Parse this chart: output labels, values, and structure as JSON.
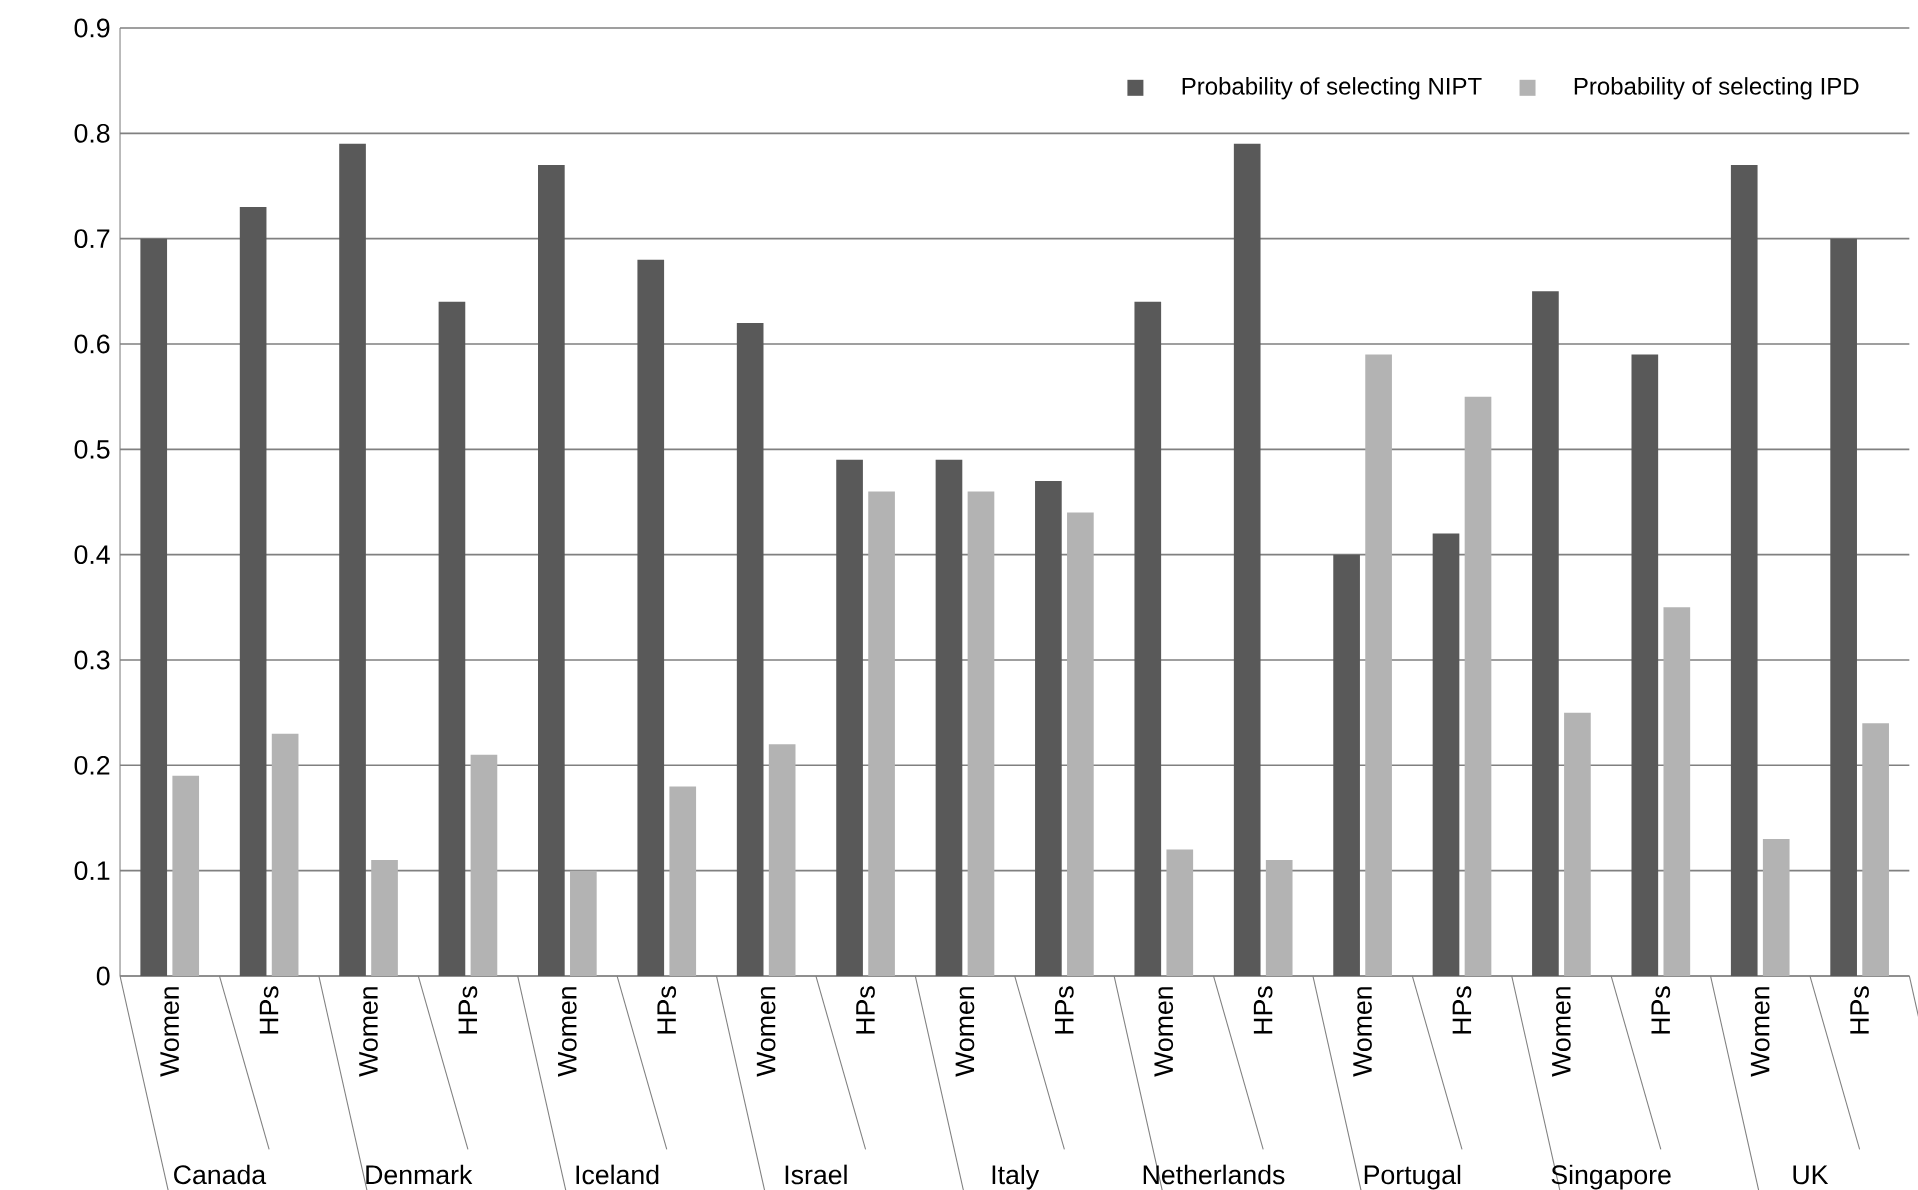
{
  "chart_data": {
    "type": "bar",
    "categories": [
      "Women",
      "HPs",
      "Women",
      "HPs",
      "Women",
      "HPs",
      "Women",
      "HPs",
      "Women",
      "HPs",
      "Women",
      "HPs",
      "Women",
      "HPs",
      "Women",
      "HPs",
      "Women",
      "HPs"
    ],
    "series": [
      {
        "name": "Probability of selecting NIPT",
        "color": "#595959",
        "values": [
          0.7,
          0.73,
          0.79,
          0.64,
          0.77,
          0.68,
          0.62,
          0.49,
          0.49,
          0.47,
          0.64,
          0.79,
          0.4,
          0.42,
          0.65,
          0.59,
          0.77,
          0.7
        ]
      },
      {
        "name": "Probability of selecting IPD",
        "color": "#b3b3b3",
        "values": [
          0.19,
          0.23,
          0.11,
          0.21,
          0.1,
          0.18,
          0.22,
          0.46,
          0.46,
          0.44,
          0.12,
          0.11,
          0.59,
          0.55,
          0.25,
          0.35,
          0.13,
          0.24
        ]
      }
    ],
    "annotations": [
      "Canada",
      "Denmark",
      "Iceland",
      "Israel",
      "Italy",
      "Netherlands",
      "Portugal",
      "Singapore",
      "UK"
    ],
    "ylim": [
      0,
      0.9
    ],
    "yticks": [
      0,
      0.1,
      0.2,
      0.3,
      0.4,
      0.5,
      0.6,
      0.7,
      0.8,
      0.9
    ],
    "grid": "y",
    "legend": "top right"
  }
}
